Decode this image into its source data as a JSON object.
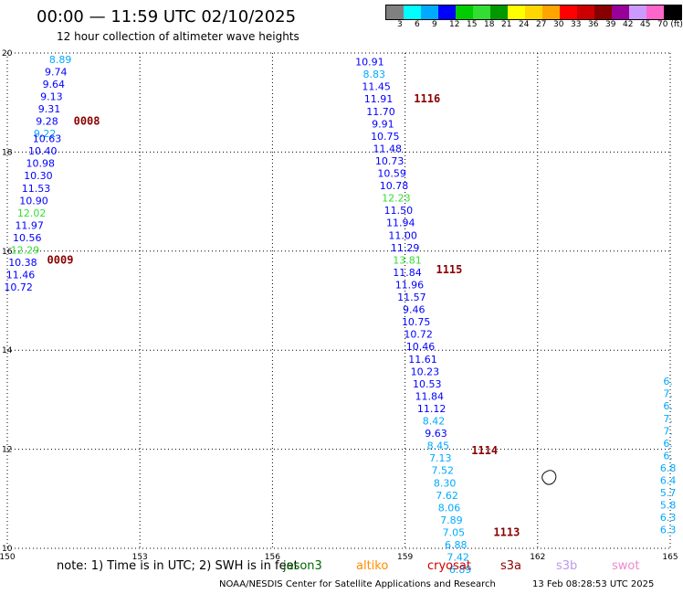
{
  "header": {
    "title": "00:00 — 11:59 UTC 02/10/2025",
    "subtitle": "12 hour collection of altimeter wave heights"
  },
  "legend": {
    "colors": [
      "#808080",
      "#00ffff",
      "#00aaff",
      "#0000ff",
      "#00cc00",
      "#33dd33",
      "#009900",
      "#ffff00",
      "#ffd700",
      "#ffa500",
      "#ff0000",
      "#cc0000",
      "#880000",
      "#990099",
      "#cc99ff",
      "#ff66cc",
      "#000000"
    ],
    "labels": [
      "3",
      "6",
      "9",
      "12",
      "15",
      "18",
      "21",
      "24",
      "27",
      "30",
      "33",
      "36",
      "39",
      "42",
      "45",
      "70 (ft)"
    ]
  },
  "footer": {
    "note": "note:  1) Time is in UTC;  2) SWH is in feet",
    "satellites": [
      {
        "name": "jason3",
        "color": "#006600"
      },
      {
        "name": "altiko",
        "color": "#ff8c00"
      },
      {
        "name": "cryosat",
        "color": "#cc0000"
      },
      {
        "name": "s3a",
        "color": "#8b0000"
      },
      {
        "name": "s3b",
        "color": "#bb99ee"
      },
      {
        "name": "swot",
        "color": "#ee88cc"
      }
    ],
    "credit": "NOAA/NESDIS Center for Satellite Applications and Research",
    "timestamp": "13 Feb 08:28:53 UTC 2025"
  },
  "chart_data": {
    "type": "scatter",
    "title": "12 hour collection of altimeter wave heights",
    "xlim": [
      150,
      165
    ],
    "ylim": [
      10,
      20
    ],
    "x_ticks": [
      150,
      153,
      156,
      159,
      162,
      165
    ],
    "y_ticks": [
      10,
      12,
      14,
      16,
      18,
      20
    ],
    "grid": true,
    "time_labels": [
      {
        "label": "0008",
        "x": 151.5,
        "y": 18.55
      },
      {
        "label": "0009",
        "x": 150.9,
        "y": 15.75
      },
      {
        "label": "1116",
        "x": 159.2,
        "y": 19.0
      },
      {
        "label": "1115",
        "x": 159.7,
        "y": 15.55
      },
      {
        "label": "1114",
        "x": 160.5,
        "y": 11.9
      },
      {
        "label": "1113",
        "x": 161.0,
        "y": 10.25
      }
    ],
    "series": [
      {
        "name": "track-1",
        "points": [
          {
            "x": 151.2,
            "y": 19.8,
            "v": "8.89",
            "c": "#00aaff"
          },
          {
            "x": 151.1,
            "y": 19.55,
            "v": "9.74",
            "c": "#0000ff"
          },
          {
            "x": 151.05,
            "y": 19.3,
            "v": "9.64",
            "c": "#0000ff"
          },
          {
            "x": 151.0,
            "y": 19.05,
            "v": "9.13",
            "c": "#0000ff"
          },
          {
            "x": 150.95,
            "y": 18.8,
            "v": "9.31",
            "c": "#0000ff"
          },
          {
            "x": 150.9,
            "y": 18.55,
            "v": "9.28",
            "c": "#0000ff"
          },
          {
            "x": 150.85,
            "y": 18.3,
            "v": "9.22",
            "c": "#00aaff"
          },
          {
            "x": 150.9,
            "y": 18.2,
            "v": "10.63",
            "c": "#0000ff"
          },
          {
            "x": 150.8,
            "y": 17.95,
            "v": "10.40",
            "c": "#0000ff"
          },
          {
            "x": 150.75,
            "y": 17.7,
            "v": "10.98",
            "c": "#0000ff"
          },
          {
            "x": 150.7,
            "y": 17.45,
            "v": "10.30",
            "c": "#0000ff"
          },
          {
            "x": 150.65,
            "y": 17.2,
            "v": "11.53",
            "c": "#0000ff"
          },
          {
            "x": 150.6,
            "y": 16.95,
            "v": "10.90",
            "c": "#0000ff"
          },
          {
            "x": 150.55,
            "y": 16.7,
            "v": "12.02",
            "c": "#33dd33"
          },
          {
            "x": 150.5,
            "y": 16.45,
            "v": "11.97",
            "c": "#0000ff"
          },
          {
            "x": 150.45,
            "y": 16.2,
            "v": "10.56",
            "c": "#0000ff"
          },
          {
            "x": 150.4,
            "y": 15.95,
            "v": "12.29",
            "c": "#33dd33"
          },
          {
            "x": 150.35,
            "y": 15.7,
            "v": "10.38",
            "c": "#0000ff"
          },
          {
            "x": 150.3,
            "y": 15.45,
            "v": "11.46",
            "c": "#0000ff"
          },
          {
            "x": 150.25,
            "y": 15.2,
            "v": "10.72",
            "c": "#0000ff"
          }
        ]
      },
      {
        "name": "track-2",
        "points": [
          {
            "x": 158.2,
            "y": 19.75,
            "v": "10.91",
            "c": "#0000ff"
          },
          {
            "x": 158.3,
            "y": 19.5,
            "v": "8.83",
            "c": "#00aaff"
          },
          {
            "x": 158.35,
            "y": 19.25,
            "v": "11.45",
            "c": "#0000ff"
          },
          {
            "x": 158.4,
            "y": 19.0,
            "v": "11.91",
            "c": "#0000ff"
          },
          {
            "x": 158.45,
            "y": 18.75,
            "v": "11.70",
            "c": "#0000ff"
          },
          {
            "x": 158.5,
            "y": 18.5,
            "v": "9.91",
            "c": "#0000ff"
          },
          {
            "x": 158.55,
            "y": 18.25,
            "v": "10.75",
            "c": "#0000ff"
          },
          {
            "x": 158.6,
            "y": 18.0,
            "v": "11.48",
            "c": "#0000ff"
          },
          {
            "x": 158.65,
            "y": 17.75,
            "v": "10.73",
            "c": "#0000ff"
          },
          {
            "x": 158.7,
            "y": 17.5,
            "v": "10.59",
            "c": "#0000ff"
          },
          {
            "x": 158.75,
            "y": 17.25,
            "v": "10.78",
            "c": "#0000ff"
          },
          {
            "x": 158.8,
            "y": 17.0,
            "v": "12.23",
            "c": "#33dd33"
          },
          {
            "x": 158.85,
            "y": 16.75,
            "v": "11.50",
            "c": "#0000ff"
          },
          {
            "x": 158.9,
            "y": 16.5,
            "v": "11.94",
            "c": "#0000ff"
          },
          {
            "x": 158.95,
            "y": 16.25,
            "v": "11.00",
            "c": "#0000ff"
          },
          {
            "x": 159.0,
            "y": 16.0,
            "v": "11.29",
            "c": "#0000ff"
          },
          {
            "x": 159.05,
            "y": 15.75,
            "v": "13.81",
            "c": "#33dd33"
          },
          {
            "x": 159.05,
            "y": 15.5,
            "v": "11.84",
            "c": "#0000ff"
          },
          {
            "x": 159.1,
            "y": 15.25,
            "v": "11.96",
            "c": "#0000ff"
          },
          {
            "x": 159.15,
            "y": 15.0,
            "v": "11.57",
            "c": "#0000ff"
          },
          {
            "x": 159.2,
            "y": 14.75,
            "v": "9.46",
            "c": "#0000ff"
          },
          {
            "x": 159.25,
            "y": 14.5,
            "v": "10.75",
            "c": "#0000ff"
          },
          {
            "x": 159.3,
            "y": 14.25,
            "v": "10.72",
            "c": "#0000ff"
          },
          {
            "x": 159.35,
            "y": 14.0,
            "v": "10.46",
            "c": "#0000ff"
          },
          {
            "x": 159.4,
            "y": 13.75,
            "v": "11.61",
            "c": "#0000ff"
          },
          {
            "x": 159.45,
            "y": 13.5,
            "v": "10.23",
            "c": "#0000ff"
          },
          {
            "x": 159.5,
            "y": 13.25,
            "v": "10.53",
            "c": "#0000ff"
          },
          {
            "x": 159.55,
            "y": 13.0,
            "v": "11.84",
            "c": "#0000ff"
          },
          {
            "x": 159.6,
            "y": 12.75,
            "v": "11.12",
            "c": "#0000ff"
          },
          {
            "x": 159.65,
            "y": 12.5,
            "v": "8.42",
            "c": "#00aaff"
          },
          {
            "x": 159.7,
            "y": 12.25,
            "v": "9.63",
            "c": "#0000ff"
          },
          {
            "x": 159.75,
            "y": 12.0,
            "v": "8.45",
            "c": "#00aaff"
          },
          {
            "x": 159.8,
            "y": 11.75,
            "v": "7.13",
            "c": "#00aaff"
          },
          {
            "x": 159.85,
            "y": 11.5,
            "v": "7.52",
            "c": "#00aaff"
          },
          {
            "x": 159.9,
            "y": 11.25,
            "v": "8.30",
            "c": "#00aaff"
          },
          {
            "x": 159.95,
            "y": 11.0,
            "v": "7.62",
            "c": "#00aaff"
          },
          {
            "x": 160.0,
            "y": 10.75,
            "v": "8.06",
            "c": "#00aaff"
          },
          {
            "x": 160.05,
            "y": 10.5,
            "v": "7.89",
            "c": "#00aaff"
          },
          {
            "x": 160.1,
            "y": 10.25,
            "v": "7.05",
            "c": "#00aaff"
          },
          {
            "x": 160.15,
            "y": 10.0,
            "v": "6.88",
            "c": "#00aaff"
          },
          {
            "x": 160.2,
            "y": 9.75,
            "v": "7.42",
            "c": "#00aaff"
          },
          {
            "x": 160.25,
            "y": 9.5,
            "v": "6.89",
            "c": "#00aaff"
          }
        ]
      },
      {
        "name": "track-3",
        "points": [
          {
            "x": 164.95,
            "y": 13.3,
            "v": "6.",
            "c": "#00aaff"
          },
          {
            "x": 164.95,
            "y": 13.05,
            "v": "7.",
            "c": "#00aaff"
          },
          {
            "x": 164.95,
            "y": 12.8,
            "v": "6.",
            "c": "#00aaff"
          },
          {
            "x": 164.95,
            "y": 12.55,
            "v": "7.",
            "c": "#00aaff"
          },
          {
            "x": 164.95,
            "y": 12.3,
            "v": "7.",
            "c": "#00aaff"
          },
          {
            "x": 164.95,
            "y": 12.05,
            "v": "6.",
            "c": "#00aaff"
          },
          {
            "x": 164.95,
            "y": 11.8,
            "v": "6.",
            "c": "#00aaff"
          },
          {
            "x": 164.95,
            "y": 11.55,
            "v": "6.8",
            "c": "#00aaff"
          },
          {
            "x": 164.95,
            "y": 11.3,
            "v": "6.4",
            "c": "#00aaff"
          },
          {
            "x": 164.95,
            "y": 11.05,
            "v": "5.7",
            "c": "#00aaff"
          },
          {
            "x": 164.95,
            "y": 10.8,
            "v": "5.8",
            "c": "#00aaff"
          },
          {
            "x": 164.95,
            "y": 10.55,
            "v": "6.3",
            "c": "#00aaff"
          },
          {
            "x": 164.95,
            "y": 10.3,
            "v": "6.3",
            "c": "#00aaff"
          }
        ]
      }
    ]
  }
}
